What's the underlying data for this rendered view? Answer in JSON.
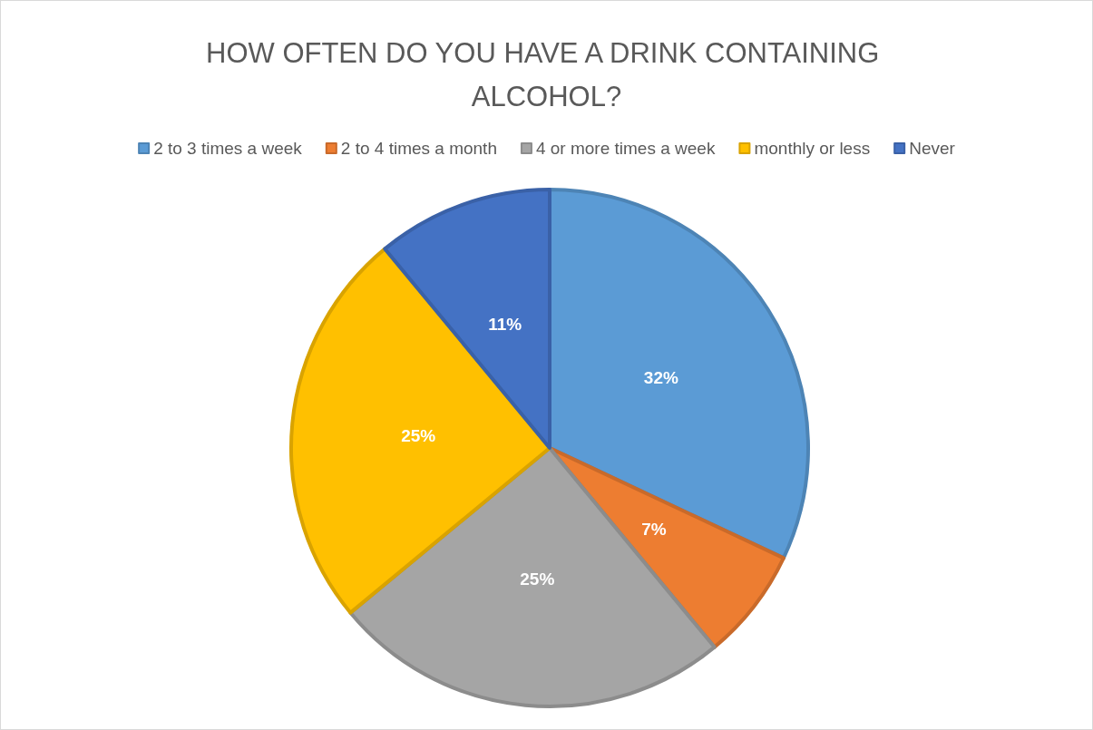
{
  "chart_data": {
    "type": "pie",
    "title": "HOW OFTEN DO YOU HAVE A DRINK CONTAINING ALCOHOL?",
    "categories": [
      "2 to 3 times a week",
      "2 to 4 times a month",
      "4 or more times a week",
      "monthly or less",
      "Never"
    ],
    "values": [
      32,
      7,
      25,
      25,
      11
    ],
    "colors": [
      "#5b9bd5",
      "#ed7d31",
      "#a5a5a5",
      "#ffc000",
      "#4472c4"
    ],
    "value_labels": [
      "32%",
      "7%",
      "25%",
      "25%",
      "11%"
    ],
    "legend": "top"
  }
}
